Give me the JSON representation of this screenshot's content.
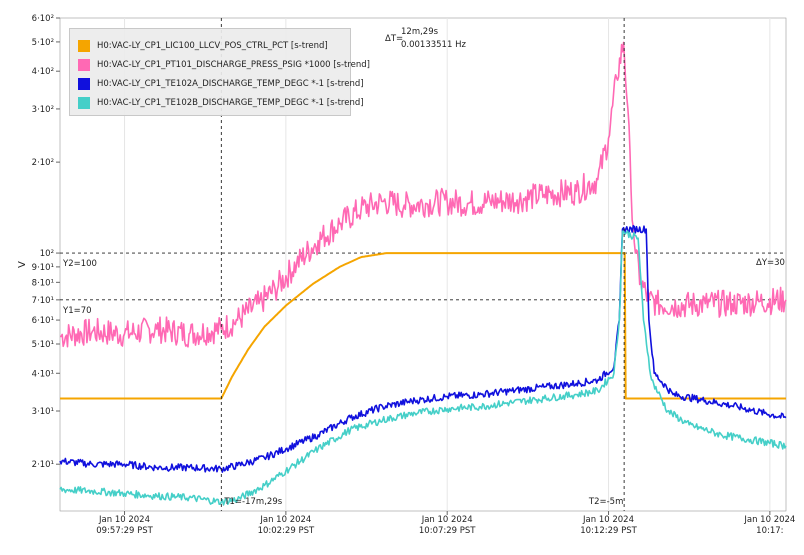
{
  "chart_data": {
    "type": "line",
    "ylabel": "V",
    "y_scale": "log",
    "ylim": [
      14,
      600
    ],
    "y_ticks": [
      {
        "value": 600,
        "label": "6·10²"
      },
      {
        "value": 500,
        "label": "5·10²"
      },
      {
        "value": 400,
        "label": "4·10²"
      },
      {
        "value": 300,
        "label": "3·10²"
      },
      {
        "value": 200,
        "label": "2·10²"
      },
      {
        "value": 100,
        "label": "10²"
      },
      {
        "value": 90,
        "label": "9·10¹"
      },
      {
        "value": 80,
        "label": "8·10¹"
      },
      {
        "value": 70,
        "label": "7·10¹"
      },
      {
        "value": 60,
        "label": "6·10¹"
      },
      {
        "value": 50,
        "label": "5·10¹"
      },
      {
        "value": 40,
        "label": "4·10¹"
      },
      {
        "value": 30,
        "label": "3·10¹"
      },
      {
        "value": 20,
        "label": "2·10¹"
      }
    ],
    "x_ticks": [
      {
        "t": 120,
        "line1": "Jan 10 2024",
        "line2": "09:57:29 PST"
      },
      {
        "t": 420,
        "line1": "Jan 10 2024",
        "line2": "10:02:29 PST"
      },
      {
        "t": 720,
        "line1": "Jan 10 2024",
        "line2": "10:07:29 PST"
      },
      {
        "t": 1020,
        "line1": "Jan 10 2024",
        "line2": "10:12:29 PST"
      },
      {
        "t": 1320,
        "line1": "Jan 10 2024",
        "line2": "10:17:"
      }
    ],
    "xlim": [
      0,
      1350
    ],
    "series": [
      {
        "name": "H0:VAC-LY_CP1_LIC100_LLCV_POS_CTRL_PCT [s-trend]",
        "color": "#f5a500",
        "points": [
          [
            0,
            33
          ],
          [
            300,
            33
          ],
          [
            320,
            39
          ],
          [
            350,
            48
          ],
          [
            380,
            57
          ],
          [
            420,
            67
          ],
          [
            470,
            79
          ],
          [
            520,
            90
          ],
          [
            560,
            97
          ],
          [
            607,
            100
          ],
          [
            700,
            100
          ],
          [
            800,
            100
          ],
          [
            900,
            100
          ],
          [
            1000,
            100
          ],
          [
            1050,
            100
          ],
          [
            1052,
            33
          ],
          [
            1100,
            33
          ],
          [
            1200,
            33
          ],
          [
            1350,
            33
          ]
        ]
      },
      {
        "name": "H0:VAC-LY_CP1_PT101_DISCHARGE_PRESS_PSIG *1000 [s-trend]",
        "color": "#ff69b4",
        "points": [
          [
            0,
            53
          ],
          [
            60,
            55
          ],
          [
            120,
            54
          ],
          [
            180,
            56
          ],
          [
            240,
            54
          ],
          [
            300,
            56
          ],
          [
            330,
            60
          ],
          [
            370,
            68
          ],
          [
            400,
            76
          ],
          [
            440,
            92
          ],
          [
            480,
            110
          ],
          [
            520,
            125
          ],
          [
            560,
            140
          ],
          [
            600,
            148
          ],
          [
            640,
            144
          ],
          [
            680,
            146
          ],
          [
            720,
            148
          ],
          [
            760,
            146
          ],
          [
            800,
            148
          ],
          [
            850,
            150
          ],
          [
            900,
            156
          ],
          [
            960,
            160
          ],
          [
            1000,
            175
          ],
          [
            1020,
            240
          ],
          [
            1035,
            380
          ],
          [
            1048,
            498
          ],
          [
            1056,
            300
          ],
          [
            1062,
            160
          ],
          [
            1070,
            100
          ],
          [
            1080,
            80
          ],
          [
            1095,
            70
          ],
          [
            1110,
            68
          ],
          [
            1150,
            67
          ],
          [
            1200,
            68
          ],
          [
            1250,
            68
          ],
          [
            1300,
            69
          ],
          [
            1350,
            70
          ]
        ]
      },
      {
        "name": "H0:VAC-LY_CP1_TE102A_DISCHARGE_TEMP_DEGC *-1 [s-trend]",
        "color": "#1010dd",
        "points": [
          [
            0,
            20.5
          ],
          [
            60,
            20
          ],
          [
            120,
            20
          ],
          [
            180,
            19.5
          ],
          [
            240,
            19.5
          ],
          [
            300,
            19.3
          ],
          [
            330,
            19.8
          ],
          [
            380,
            21
          ],
          [
            420,
            22.5
          ],
          [
            480,
            25
          ],
          [
            540,
            28.5
          ],
          [
            600,
            31
          ],
          [
            660,
            32.5
          ],
          [
            720,
            33.5
          ],
          [
            780,
            34
          ],
          [
            840,
            35
          ],
          [
            900,
            36
          ],
          [
            960,
            37
          ],
          [
            1000,
            38
          ],
          [
            1030,
            42
          ],
          [
            1040,
            60
          ],
          [
            1046,
            120
          ],
          [
            1090,
            120
          ],
          [
            1095,
            60
          ],
          [
            1105,
            40
          ],
          [
            1140,
            34
          ],
          [
            1200,
            32.5
          ],
          [
            1260,
            31
          ],
          [
            1310,
            29.5
          ],
          [
            1350,
            28.5
          ]
        ]
      },
      {
        "name": "H0:VAC-LY_CP1_TE102B_DISCHARGE_TEMP_DEGC *-1 [s-trend]",
        "color": "#45cfc8",
        "points": [
          [
            0,
            16.5
          ],
          [
            60,
            16.3
          ],
          [
            120,
            16
          ],
          [
            180,
            15.7
          ],
          [
            240,
            15.5
          ],
          [
            300,
            15
          ],
          [
            330,
            15.3
          ],
          [
            380,
            17
          ],
          [
            420,
            19
          ],
          [
            480,
            22.5
          ],
          [
            540,
            26
          ],
          [
            600,
            28
          ],
          [
            660,
            29.5
          ],
          [
            720,
            30.5
          ],
          [
            780,
            31
          ],
          [
            840,
            32
          ],
          [
            900,
            33
          ],
          [
            960,
            34
          ],
          [
            1000,
            35
          ],
          [
            1030,
            40
          ],
          [
            1040,
            60
          ],
          [
            1046,
            118
          ],
          [
            1075,
            112
          ],
          [
            1085,
            60
          ],
          [
            1100,
            38
          ],
          [
            1130,
            30
          ],
          [
            1170,
            27
          ],
          [
            1230,
            25
          ],
          [
            1290,
            24
          ],
          [
            1350,
            23
          ]
        ]
      }
    ],
    "cursors": [
      {
        "t": 300,
        "label": "T1=-17m,29s"
      },
      {
        "t": 1049,
        "label": "T2=-5m"
      }
    ],
    "hlines": [
      {
        "value": 100,
        "label": "Y2=100"
      },
      {
        "value": 70,
        "label": "Y1=70"
      }
    ],
    "delta_t": {
      "label": "ΔT=",
      "value1": "12m,29s",
      "value2": "0.00133511 Hz"
    },
    "delta_y": "ΔY=30",
    "legend_placement": "top-left",
    "grid": "vertical"
  }
}
